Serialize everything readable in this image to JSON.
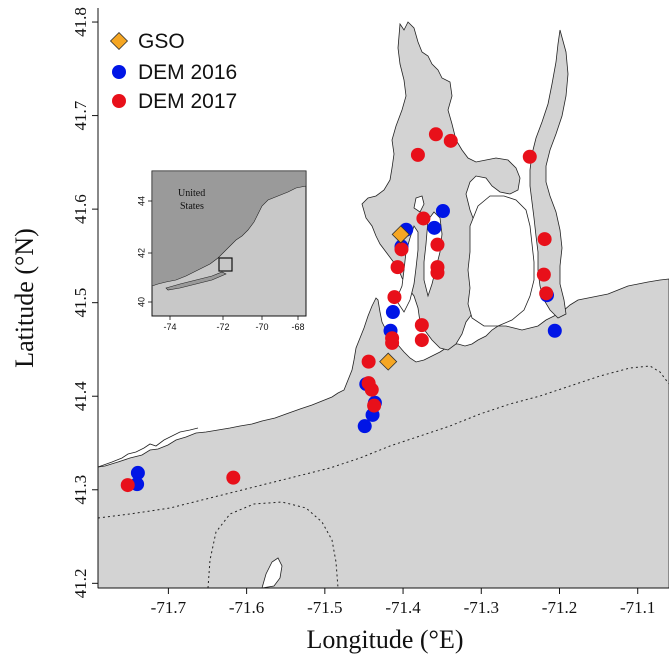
{
  "chart_data": {
    "type": "scatter",
    "xlabel": "Longitude (°E)",
    "ylabel": "Latitude (°N)",
    "xlim": [
      -71.79,
      -71.06
    ],
    "ylim": [
      41.195,
      41.815
    ],
    "x_ticks": [
      "-71.7",
      "-71.6",
      "-71.5",
      "-71.4",
      "-71.3",
      "-71.2",
      "-71.1"
    ],
    "y_ticks": [
      "41.2",
      "41.3",
      "41.4",
      "41.5",
      "41.6",
      "41.7",
      "41.8"
    ],
    "land_color": "#ffffff",
    "water_color": "#d3d3d3",
    "legend_placement": "top-left",
    "series": [
      {
        "name": "GSO",
        "marker": "diamond",
        "color": "#f5a623",
        "points": [
          {
            "x": -71.403,
            "y": 41.573
          },
          {
            "x": -71.419,
            "y": 41.437
          }
        ]
      },
      {
        "name": "DEM 2016",
        "marker": "circle",
        "color": "#0015e6",
        "points": [
          {
            "x": -71.739,
            "y": 41.318
          },
          {
            "x": -71.74,
            "y": 41.306
          },
          {
            "x": -71.449,
            "y": 41.368
          },
          {
            "x": -71.439,
            "y": 41.38
          },
          {
            "x": -71.436,
            "y": 41.393
          },
          {
            "x": -71.447,
            "y": 41.413
          },
          {
            "x": -71.413,
            "y": 41.49
          },
          {
            "x": -71.416,
            "y": 41.47
          },
          {
            "x": -71.396,
            "y": 41.578
          },
          {
            "x": -71.402,
            "y": 41.56
          },
          {
            "x": -71.36,
            "y": 41.58
          },
          {
            "x": -71.349,
            "y": 41.598
          },
          {
            "x": -71.206,
            "y": 41.47
          },
          {
            "x": -71.216,
            "y": 41.508
          }
        ]
      },
      {
        "name": "DEM 2017",
        "marker": "circle",
        "color": "#e8101a",
        "points": [
          {
            "x": -71.752,
            "y": 41.305
          },
          {
            "x": -71.617,
            "y": 41.313
          },
          {
            "x": -71.444,
            "y": 41.437
          },
          {
            "x": -71.444,
            "y": 41.414
          },
          {
            "x": -71.44,
            "y": 41.407
          },
          {
            "x": -71.437,
            "y": 41.39
          },
          {
            "x": -71.411,
            "y": 41.506
          },
          {
            "x": -71.414,
            "y": 41.462
          },
          {
            "x": -71.414,
            "y": 41.457
          },
          {
            "x": -71.376,
            "y": 41.476
          },
          {
            "x": -71.376,
            "y": 41.46
          },
          {
            "x": -71.407,
            "y": 41.538
          },
          {
            "x": -71.402,
            "y": 41.557
          },
          {
            "x": -71.374,
            "y": 41.59
          },
          {
            "x": -71.356,
            "y": 41.562
          },
          {
            "x": -71.356,
            "y": 41.538
          },
          {
            "x": -71.356,
            "y": 41.532
          },
          {
            "x": -71.381,
            "y": 41.658
          },
          {
            "x": -71.358,
            "y": 41.68
          },
          {
            "x": -71.339,
            "y": 41.673
          },
          {
            "x": -71.238,
            "y": 41.656
          },
          {
            "x": -71.219,
            "y": 41.568
          },
          {
            "x": -71.22,
            "y": 41.53
          },
          {
            "x": -71.217,
            "y": 41.51
          }
        ]
      }
    ],
    "contour_style": "dotted"
  },
  "inset": {
    "label": "United\nStates",
    "label_lines": [
      "United",
      "States"
    ],
    "x_ticks": [
      "-74",
      "-72",
      "-70",
      "-68"
    ],
    "y_ticks": [
      "40",
      "42",
      "44"
    ]
  }
}
